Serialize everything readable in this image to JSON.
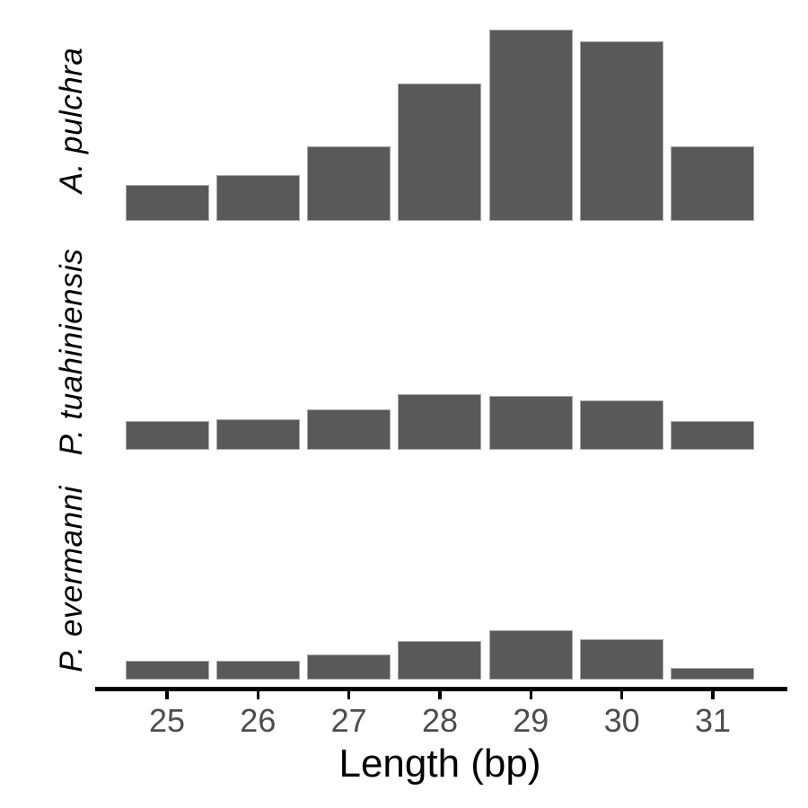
{
  "chart_data": {
    "type": "bar",
    "subtype": "faceted-histogram",
    "title": "",
    "xlabel": "Length (bp)",
    "ylabel": "",
    "categories": [
      "25",
      "26",
      "27",
      "28",
      "29",
      "30",
      "31"
    ],
    "series": [
      {
        "name": "A. pulchra",
        "values": [
          0.19,
          0.24,
          0.39,
          0.72,
          1.0,
          0.94,
          0.39
        ]
      },
      {
        "name": "P. tuahiniensis",
        "values": [
          0.15,
          0.16,
          0.21,
          0.29,
          0.28,
          0.26,
          0.15
        ]
      },
      {
        "name": "P. evermanni",
        "values": [
          0.1,
          0.1,
          0.13,
          0.2,
          0.26,
          0.21,
          0.06
        ]
      }
    ],
    "value_note": "relative bar heights estimated from pixels; no y-axis shown in figure",
    "layout": "three stacked facet rows sharing one x-axis, facet labels rotated on left",
    "grid": false,
    "legend": false
  },
  "colors": {
    "background": "#ffffff",
    "bar_fill": "#595959",
    "bar_stroke": "#a8a8a8",
    "axis_line": "#000000",
    "tick_label": "#4d4d4d",
    "axis_title": "#000000",
    "strip_text": "#000000"
  }
}
